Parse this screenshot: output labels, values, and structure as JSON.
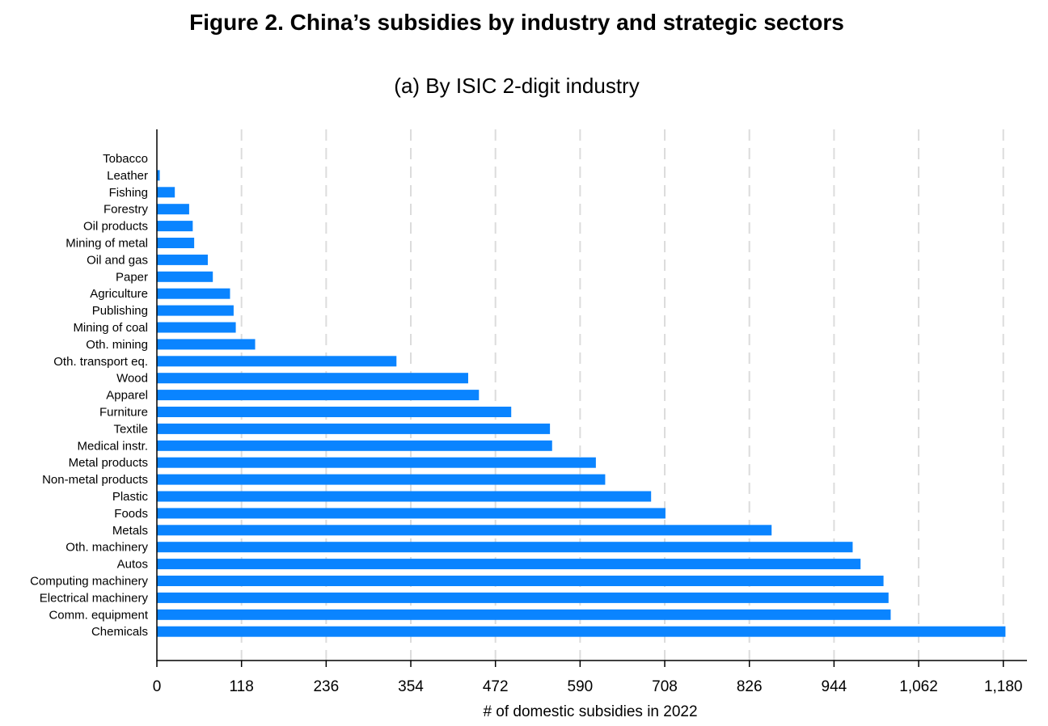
{
  "figure_title": "Figure 2. China’s subsidies by industry and strategic sectors",
  "chart_data": {
    "type": "bar",
    "orientation": "horizontal",
    "subtitle": "(a) By ISIC 2-digit industry",
    "xlabel": "# of domestic subsidies in 2022",
    "ylabel": "",
    "xlim": [
      0,
      1213
    ],
    "xticks": [
      0,
      118,
      236,
      354,
      472,
      590,
      708,
      826,
      944,
      1062,
      1180
    ],
    "xtick_labels": [
      "0",
      "118",
      "236",
      "354",
      "472",
      "590",
      "708",
      "826",
      "944",
      "1,062",
      "1,180"
    ],
    "grid": "vertical dashed",
    "bar_color": "#0a84ff",
    "categories": [
      "Tobacco",
      "Leather",
      "Fishing",
      "Forestry",
      "Oil products",
      "Mining of metal",
      "Oil and gas",
      "Paper",
      "Agriculture",
      "Publishing",
      "Mining of coal",
      "Oth. mining",
      "Oth. transport eq.",
      "Wood",
      "Apparel",
      "Furniture",
      "Textile",
      "Medical instr.",
      "Metal products",
      "Non-metal products",
      "Plastic",
      "Foods",
      "Metals",
      "Oth. machinery",
      "Autos",
      "Computing machinery",
      "Electrical machinery",
      "Comm. equipment",
      "Chemicals"
    ],
    "values": [
      0,
      4,
      25,
      45,
      50,
      52,
      71,
      78,
      102,
      107,
      110,
      137,
      334,
      434,
      449,
      494,
      548,
      551,
      612,
      625,
      689,
      709,
      857,
      970,
      981,
      1013,
      1020,
      1023,
      1183
    ]
  }
}
